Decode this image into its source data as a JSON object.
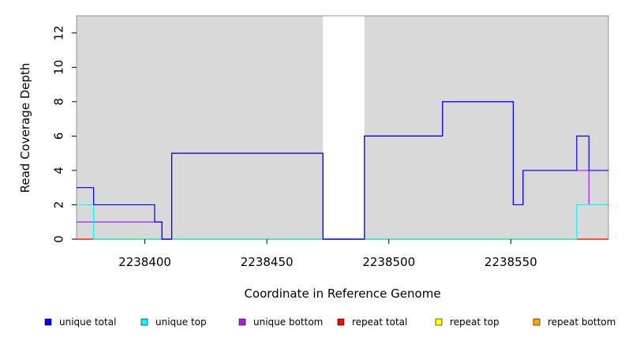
{
  "chart_data": {
    "type": "line",
    "step": true,
    "title": "",
    "xlabel": "Coordinate in Reference Genome",
    "ylabel": "Read Coverage Depth",
    "xlim": [
      2238372,
      2238590
    ],
    "ylim": [
      0,
      13
    ],
    "xticks": [
      2238400,
      2238450,
      2238500,
      2238550
    ],
    "yticks": [
      0,
      2,
      4,
      6,
      8,
      10,
      12
    ],
    "background": "#d9d9d9",
    "gap_regions": [
      [
        2238473,
        2238490
      ]
    ],
    "legend_position": "bottom",
    "series": [
      {
        "name": "unique total",
        "color": "#0000ff",
        "steps": [
          [
            2238372,
            3
          ],
          [
            2238379,
            2
          ],
          [
            2238404,
            1
          ],
          [
            2238407,
            0
          ],
          [
            2238411,
            5
          ],
          [
            2238473,
            0
          ],
          [
            2238490,
            6
          ],
          [
            2238522,
            8
          ],
          [
            2238551,
            2
          ],
          [
            2238555,
            4
          ],
          [
            2238577,
            6
          ],
          [
            2238582,
            4
          ],
          [
            2238590,
            4
          ]
        ]
      },
      {
        "name": "unique top",
        "color": "#00ffff",
        "steps": [
          [
            2238372,
            2
          ],
          [
            2238379,
            0
          ],
          [
            2238577,
            2
          ],
          [
            2238590,
            2
          ]
        ]
      },
      {
        "name": "unique bottom",
        "color": "#a020f0",
        "steps": [
          [
            2238372,
            1
          ],
          [
            2238404,
            1
          ],
          [
            2238407,
            0
          ],
          [
            2238411,
            5
          ],
          [
            2238473,
            0
          ],
          [
            2238490,
            6
          ],
          [
            2238522,
            8
          ],
          [
            2238551,
            2
          ],
          [
            2238555,
            4
          ],
          [
            2238582,
            2
          ],
          [
            2238590,
            2
          ]
        ]
      },
      {
        "name": "repeat total",
        "color": "#ff0000",
        "steps": [
          [
            2238372,
            0
          ],
          [
            2238590,
            0
          ]
        ]
      },
      {
        "name": "repeat top",
        "color": "#ffff00",
        "steps": [
          [
            2238372,
            0
          ],
          [
            2238590,
            0
          ]
        ]
      },
      {
        "name": "repeat bottom",
        "color": "#ffa500",
        "steps": [
          [
            2238372,
            0
          ],
          [
            2238590,
            0
          ]
        ]
      }
    ]
  }
}
